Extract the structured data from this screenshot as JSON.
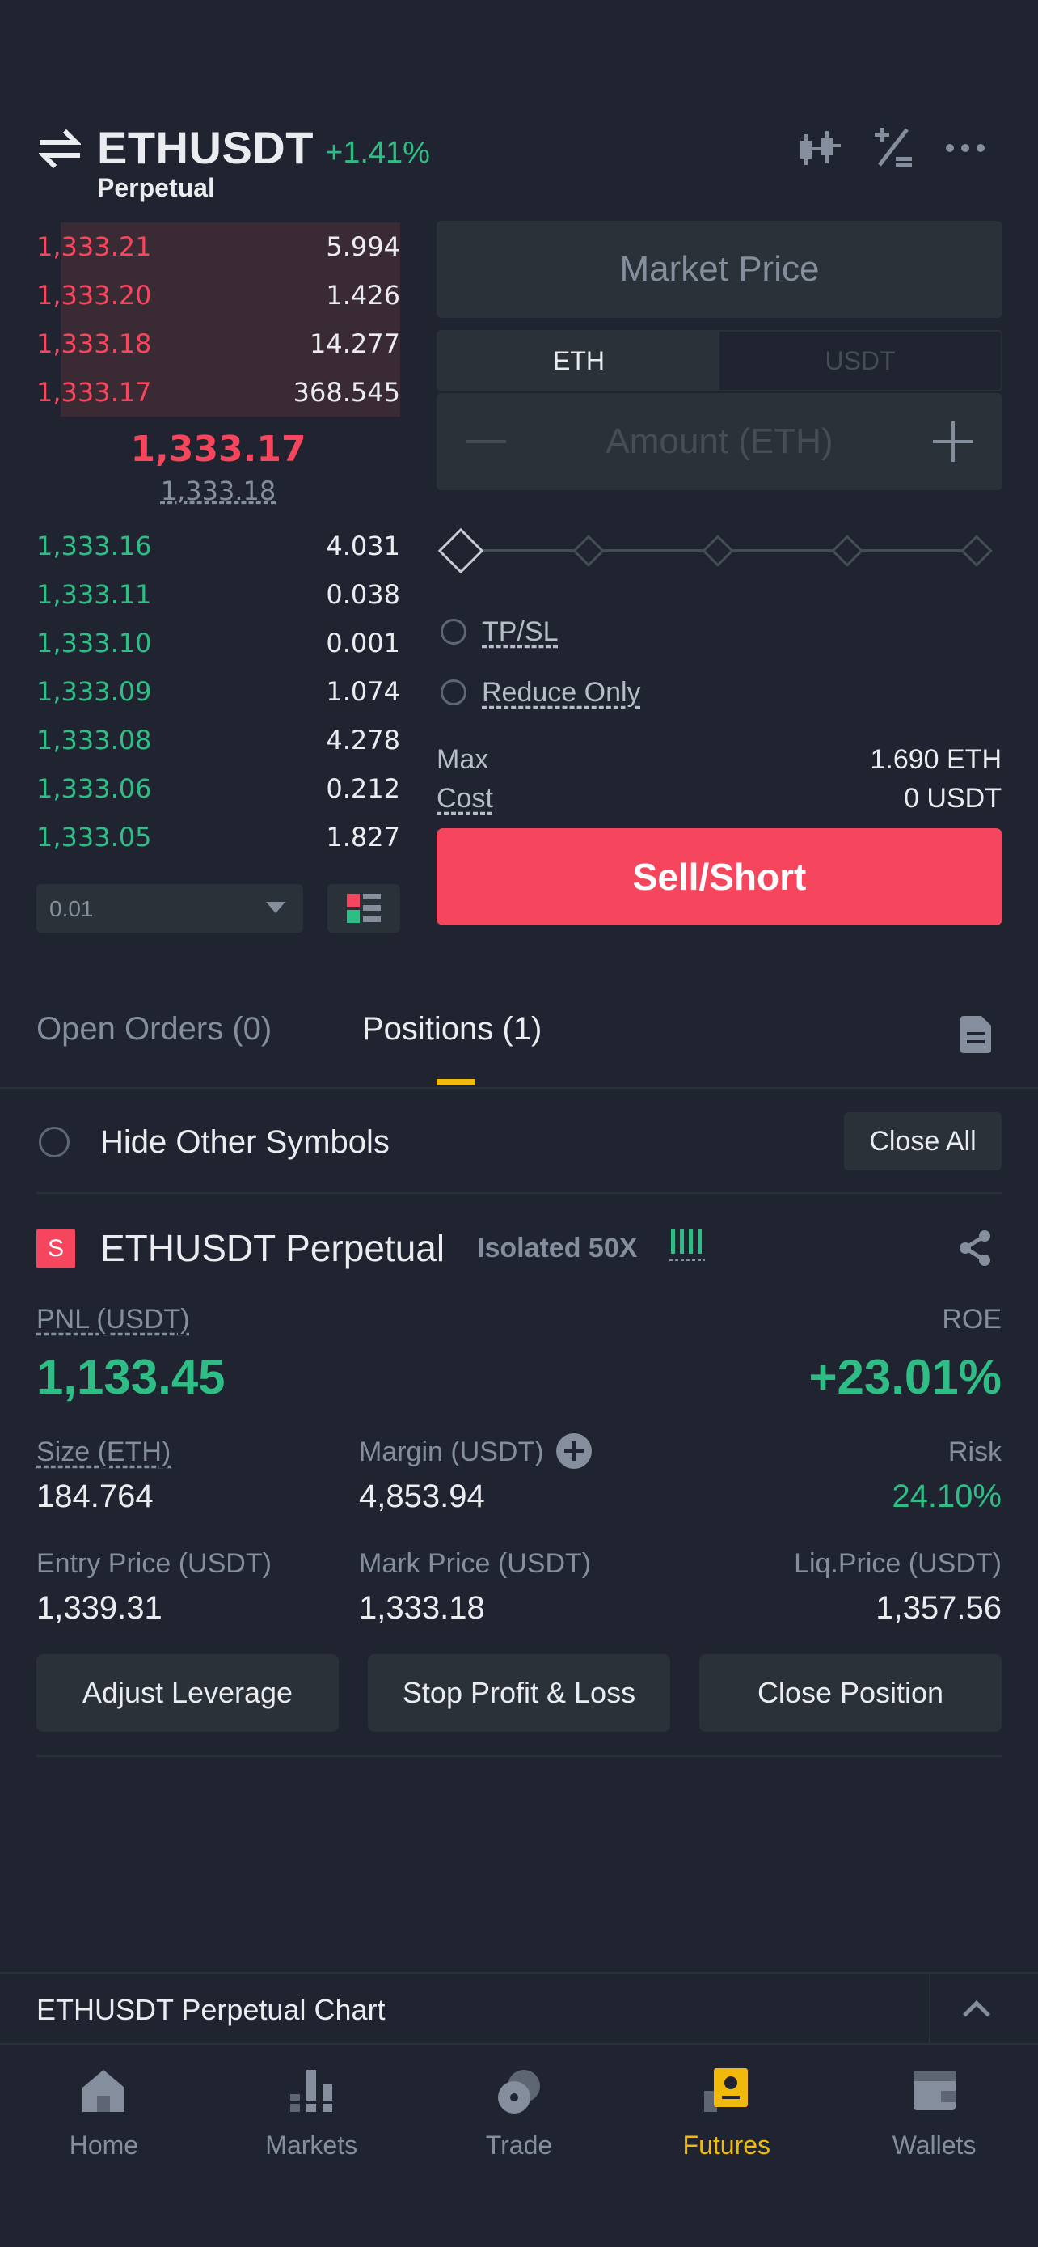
{
  "header": {
    "symbol": "ETHUSDT",
    "change": "+1.41%",
    "contract_type": "Perpetual",
    "icons": [
      "swap-icon",
      "candlestick-icon",
      "calculator-icon",
      "more-icon"
    ]
  },
  "order_book": {
    "asks": [
      {
        "price": "1,333.21",
        "qty": "5.994"
      },
      {
        "price": "1,333.20",
        "qty": "1.426"
      },
      {
        "price": "1,333.18",
        "qty": "14.277"
      },
      {
        "price": "1,333.17",
        "qty": "368.545"
      }
    ],
    "last_price": "1,333.17",
    "mark_price": "1,333.18",
    "bids": [
      {
        "price": "1,333.16",
        "qty": "4.031"
      },
      {
        "price": "1,333.11",
        "qty": "0.038"
      },
      {
        "price": "1,333.10",
        "qty": "0.001"
      },
      {
        "price": "1,333.09",
        "qty": "1.074"
      },
      {
        "price": "1,333.08",
        "qty": "4.278"
      },
      {
        "price": "1,333.06",
        "qty": "0.212"
      },
      {
        "price": "1,333.05",
        "qty": "1.827"
      }
    ],
    "depth": "0.01"
  },
  "order_form": {
    "price_type": "Market Price",
    "unit_tabs": [
      "ETH",
      "USDT"
    ],
    "amount_placeholder": "Amount (ETH)",
    "tpsl_label": "TP/SL",
    "reduce_only_label": "Reduce Only",
    "max_label": "Max",
    "max_value": "1.690 ETH",
    "cost_label": "Cost",
    "cost_value": "0 USDT",
    "submit_label": "Sell/Short"
  },
  "tabs": {
    "open_orders": "Open Orders (0)",
    "positions": "Positions (1)"
  },
  "positions_panel": {
    "hide_other_label": "Hide Other Symbols",
    "close_all_label": "Close All"
  },
  "position": {
    "side": "S",
    "symbol": "ETHUSDT Perpetual",
    "margin_mode": "Isolated 50X",
    "pnl_label": "PNL (USDT)",
    "pnl_value": "1,133.45",
    "roe_label": "ROE",
    "roe_value": "+23.01%",
    "size_label": "Size (ETH)",
    "size_value": "184.764",
    "margin_label": "Margin (USDT)",
    "margin_value": "4,853.94",
    "risk_label": "Risk",
    "risk_value": "24.10%",
    "entry_label": "Entry Price (USDT)",
    "entry_value": "1,339.31",
    "mark_label": "Mark Price (USDT)",
    "mark_value": "1,333.18",
    "liq_label": "Liq.Price (USDT)",
    "liq_value": "1,357.56",
    "buttons": [
      "Adjust Leverage",
      "Stop Profit & Loss",
      "Close Position"
    ]
  },
  "chart_bar": {
    "label": "ETHUSDT Perpetual  Chart"
  },
  "nav": {
    "items": [
      {
        "label": "Home",
        "icon": "home-icon"
      },
      {
        "label": "Markets",
        "icon": "markets-icon"
      },
      {
        "label": "Trade",
        "icon": "trade-icon"
      },
      {
        "label": "Futures",
        "icon": "futures-icon"
      },
      {
        "label": "Wallets",
        "icon": "wallet-icon"
      }
    ],
    "active": "Futures"
  },
  "colors": {
    "background": "#1f2430",
    "panel": "#2b3139",
    "buy": "#2ebd85",
    "sell": "#f6465d",
    "accent": "#f0b90b",
    "muted": "#848e9c"
  }
}
